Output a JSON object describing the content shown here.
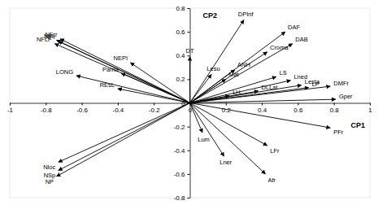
{
  "chart_data": {
    "type": "biplot",
    "xlabel": "CP1",
    "ylabel": "CP2",
    "labels": [
      "NFI",
      "NFrr",
      "NFr",
      "NFLF",
      "LONG",
      "NEPI",
      "Pama",
      "REsL",
      "DT",
      "DPInf",
      "DAF",
      "DAB",
      "Croma",
      "ANH",
      "Lesu",
      "Mat",
      "LS",
      "Lned",
      "Lesta",
      "LP",
      "DMFr",
      "Gper",
      "DLLat",
      "LH",
      "PFr",
      "Lum",
      "Lner",
      "LFr",
      "Afr",
      "Nloc",
      "NSp",
      "NP"
    ],
    "x": [
      -0.74,
      -0.72,
      -0.73,
      -0.75,
      -0.63,
      -0.33,
      -0.38,
      -0.4,
      0.0,
      0.3,
      0.53,
      0.57,
      0.43,
      0.25,
      0.12,
      0.2,
      0.48,
      0.56,
      0.62,
      0.66,
      0.78,
      0.81,
      0.38,
      0.22,
      0.78,
      0.07,
      0.19,
      0.43,
      0.42,
      -0.73,
      -0.73,
      -0.74
    ],
    "y": [
      0.53,
      0.54,
      0.52,
      0.5,
      0.23,
      0.34,
      0.25,
      0.12,
      0.39,
      0.7,
      0.6,
      0.5,
      0.43,
      0.28,
      0.24,
      0.2,
      0.22,
      0.19,
      0.15,
      0.13,
      0.14,
      0.03,
      0.1,
      0.06,
      -0.21,
      -0.25,
      -0.45,
      -0.36,
      -0.6,
      -0.5,
      -0.57,
      -0.62
    ],
    "color": "#000000",
    "xlim": [
      -1,
      1
    ],
    "ylim": [
      -0.8,
      0.8
    ],
    "xticks": [
      -1,
      -0.8,
      -0.6,
      -0.4,
      -0.2,
      0,
      0.2,
      0.4,
      0.6,
      0.8,
      1
    ],
    "yticks": [
      -0.8,
      -0.6,
      -0.4,
      -0.2,
      0,
      0.2,
      0.4,
      0.6,
      0.8
    ],
    "grid": false
  }
}
